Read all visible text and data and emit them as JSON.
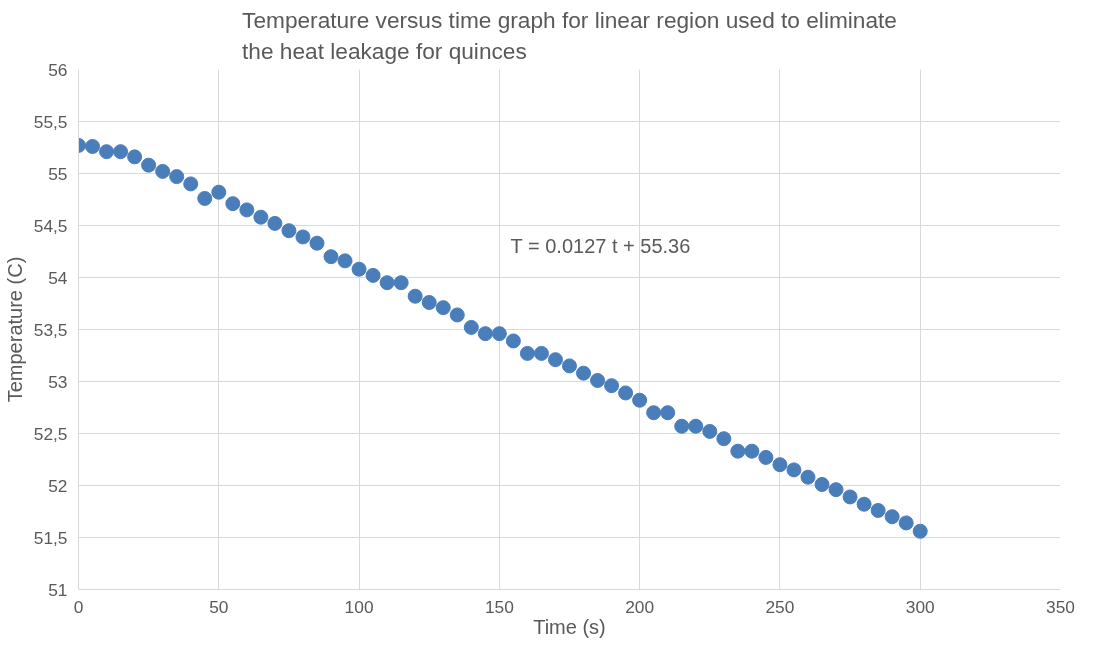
{
  "chart_data": {
    "type": "scatter",
    "title": "Temperature versus time graph for linear region used to eliminate\nthe heat leakage for quinces",
    "xlabel": "Time (s)",
    "ylabel": "Temperature (C)",
    "x": [
      0,
      5,
      10,
      15,
      20,
      25,
      30,
      35,
      40,
      45,
      50,
      55,
      60,
      65,
      70,
      75,
      80,
      85,
      90,
      95,
      100,
      105,
      110,
      115,
      120,
      125,
      130,
      135,
      140,
      145,
      150,
      155,
      160,
      165,
      170,
      175,
      180,
      185,
      190,
      195,
      200,
      205,
      210,
      215,
      220,
      225,
      230,
      235,
      240,
      245,
      250,
      255,
      260,
      265,
      270,
      275,
      280,
      285,
      290,
      295,
      300
    ],
    "series": [
      {
        "color": "#4a7ebb",
        "values": [
          55.27,
          55.26,
          55.21,
          55.21,
          55.16,
          55.08,
          55.02,
          54.97,
          54.9,
          54.76,
          54.82,
          54.71,
          54.65,
          54.58,
          54.52,
          54.45,
          54.39,
          54.33,
          54.2,
          54.16,
          54.08,
          54.02,
          53.95,
          53.95,
          53.82,
          53.76,
          53.71,
          53.64,
          53.52,
          53.46,
          53.46,
          53.39,
          53.27,
          53.27,
          53.21,
          53.15,
          53.08,
          53.01,
          52.96,
          52.89,
          52.82,
          52.7,
          52.7,
          52.57,
          52.57,
          52.52,
          52.45,
          52.33,
          52.33,
          52.27,
          52.2,
          52.15,
          52.08,
          52.01,
          51.96,
          51.89,
          51.82,
          51.76,
          51.7,
          51.64,
          51.56
        ]
      }
    ],
    "marker": "circle",
    "grid": true,
    "xlim": [
      0,
      350
    ],
    "xticks": [
      0,
      50,
      100,
      150,
      200,
      250,
      300,
      350
    ],
    "ylim": [
      51,
      56
    ],
    "yticks": [
      51,
      {
        "value": 51.5,
        "label": "51,5"
      },
      52,
      {
        "value": 52.5,
        "label": "52,5"
      },
      53,
      {
        "value": 53.5,
        "label": "53,5"
      },
      54,
      {
        "value": 54.5,
        "label": "54,5"
      },
      55,
      {
        "value": 55.5,
        "label": "55,5"
      },
      56
    ],
    "annotations": [
      "T =  0.0127 t + 55.36"
    ]
  }
}
